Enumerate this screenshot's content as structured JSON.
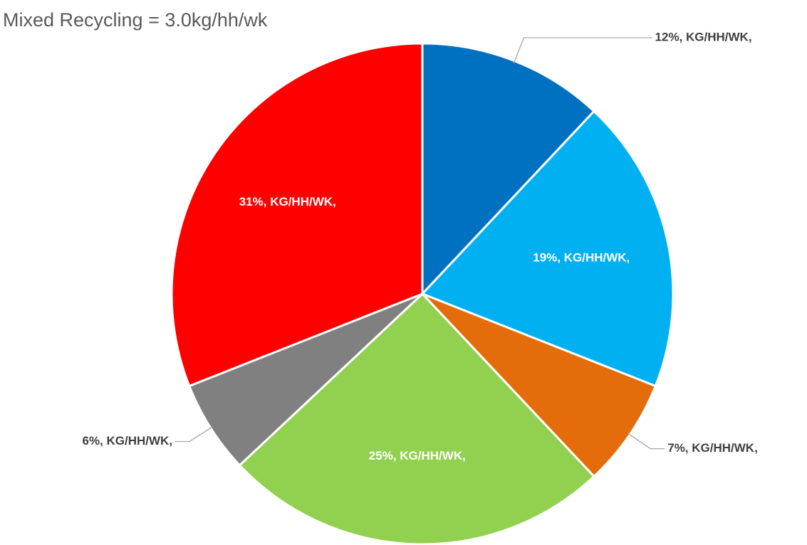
{
  "chart_data": {
    "type": "pie",
    "title": "Mixed Recycling = 3.0kg/hh/wk",
    "values": [
      12,
      19,
      7,
      25,
      6,
      31
    ],
    "value_labels": [
      "12%, KG/HH/WK,",
      "19%, KG/HH/WK,",
      "7%, KG/HH/WK,",
      "25%, KG/HH/WK,",
      "6%, KG/HH/WK,",
      "31%, KG/HH/WK,"
    ],
    "colors": [
      "#0070c0",
      "#00b0f0",
      "#e46c0a",
      "#92d050",
      "#808080",
      "#ff0000"
    ]
  }
}
